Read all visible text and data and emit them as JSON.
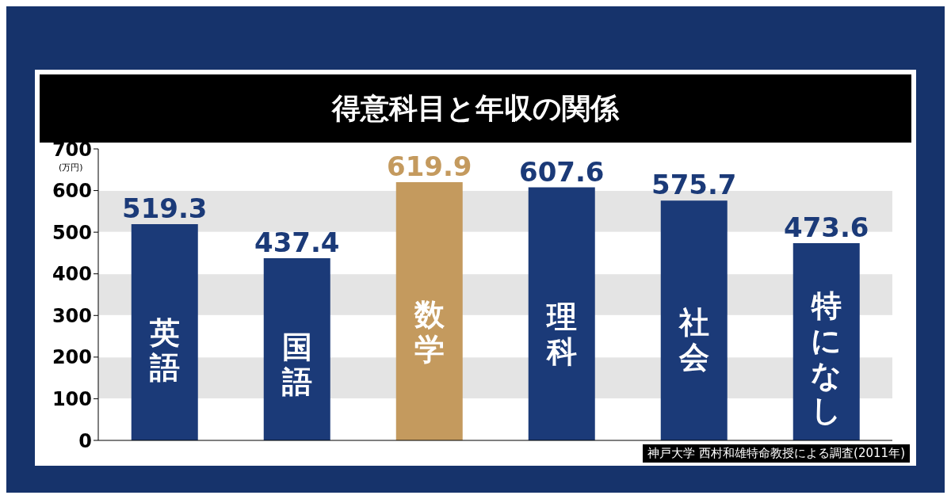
{
  "chart_data": {
    "type": "bar",
    "title": "得意科目と年収の関係",
    "ylabel": "(万円)",
    "categories": [
      "英語",
      "国語",
      "数学",
      "理科",
      "社会",
      "特になし"
    ],
    "values": [
      519.3,
      437.4,
      619.9,
      607.6,
      575.7,
      473.6
    ],
    "colors": [
      "#1b3a78",
      "#1b3a78",
      "#c49a5e",
      "#1b3a78",
      "#1b3a78",
      "#1b3a78"
    ],
    "ylim": [
      0,
      700
    ],
    "yticks": [
      0,
      100,
      200,
      300,
      400,
      500,
      600,
      700
    ],
    "grid": "y",
    "data_labels": true,
    "annotations": [
      "神戸大学 西村和雄特命教授による調査(2011年)"
    ]
  }
}
